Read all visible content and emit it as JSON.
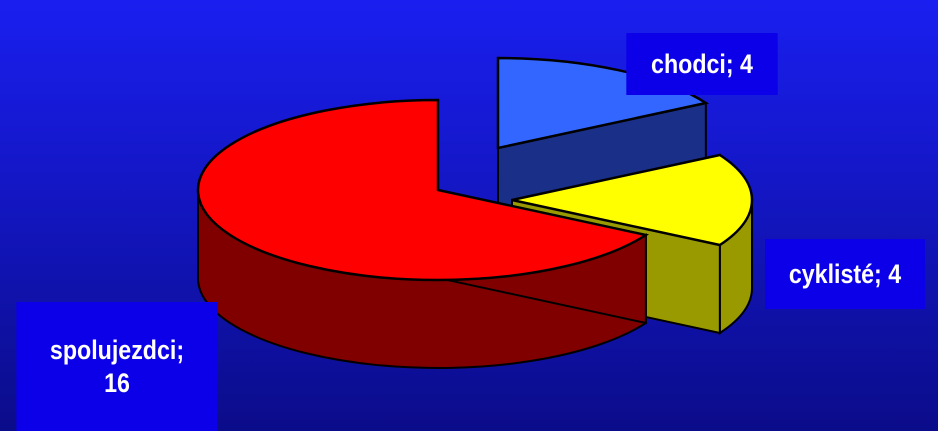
{
  "slide": {
    "background_top": "#1a1ff0",
    "background_bottom": "#0b0c8a",
    "label_box_color": "#0c00e8"
  },
  "chart_data": {
    "type": "pie",
    "style": "3d-exploded",
    "labels_format": "category; value",
    "slices": [
      {
        "name": "chodci",
        "value": 4,
        "label_line1": "chodci; 4",
        "top_color": "#3366ff",
        "side_color": "#1a2f88"
      },
      {
        "name": "cyklisté",
        "value": 4,
        "label_line1": "cyklisté; 4",
        "top_color": "#ffff00",
        "side_color": "#999900"
      },
      {
        "name": "spolujezdci",
        "value": 16,
        "label_line1": "spolujezdci;",
        "label_line2": "16",
        "top_color": "#ff0000",
        "side_color": "#800000"
      }
    ],
    "legend": "none"
  }
}
